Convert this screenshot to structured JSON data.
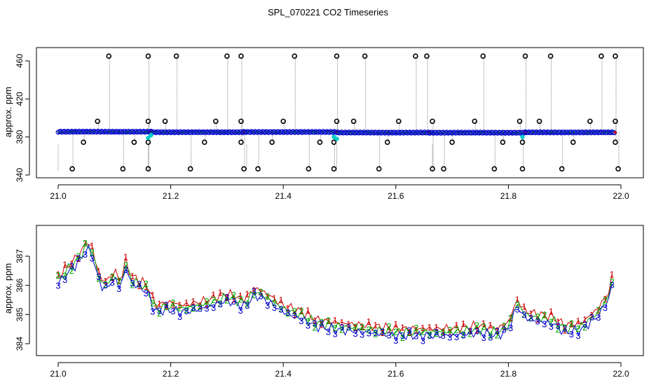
{
  "figure_title": "SPL_070221  CO2 Timeseries",
  "colors": {
    "series1": "#cc0000",
    "series2": "#00aa00",
    "series3": "#0000cc",
    "outlier": "#000000",
    "drop": "#888888",
    "cyan": "#00cccc"
  },
  "chart_data": [
    {
      "type": "scatter",
      "title": "",
      "xlabel": "",
      "ylabel": "approx. ppm",
      "xlim": [
        21.0,
        22.0
      ],
      "ylim": [
        340,
        470
      ],
      "x_ticks": [
        "21.0",
        "21.2",
        "21.4",
        "21.6",
        "21.8",
        "22.0"
      ],
      "y_ticks": [
        "340",
        "380",
        "420",
        "460"
      ],
      "baseline_segments": [
        [
          21.0,
          21.165,
          385.5
        ],
        [
          21.165,
          21.33,
          385.0
        ],
        [
          21.33,
          21.495,
          385.2
        ],
        [
          21.495,
          21.66,
          384.6
        ],
        [
          21.66,
          21.83,
          384.5
        ],
        [
          21.83,
          21.99,
          384.8
        ]
      ],
      "spikes_high": [
        21.09,
        21.16,
        21.21,
        21.3,
        21.325,
        21.42,
        21.495,
        21.545,
        21.635,
        21.655,
        21.755,
        21.83,
        21.875,
        21.965,
        21.99
      ],
      "spikes_mid": [
        21.07,
        21.16,
        21.19,
        21.28,
        21.325,
        21.4,
        21.495,
        21.525,
        21.605,
        21.665,
        21.74,
        21.82,
        21.855,
        21.945,
        21.99
      ],
      "spikes_low": [
        21.045,
        21.135,
        21.16,
        21.26,
        21.325,
        21.38,
        21.465,
        21.49,
        21.585,
        21.7,
        21.79,
        21.825,
        21.915,
        21.99
      ],
      "spikes_bottom": [
        21.025,
        21.115,
        21.16,
        21.235,
        21.33,
        21.355,
        21.445,
        21.49,
        21.57,
        21.665,
        21.685,
        21.775,
        21.825,
        21.895,
        21.995
      ],
      "cyan_points": [
        [
          21.16,
          379
        ],
        [
          21.165,
          382
        ],
        [
          21.49,
          380
        ],
        [
          21.495,
          378
        ],
        [
          21.825,
          380
        ]
      ]
    },
    {
      "type": "line",
      "title": "",
      "xlabel": "",
      "ylabel": "approx. ppm",
      "xlim": [
        21.0,
        22.0
      ],
      "ylim": [
        383.6,
        387.6
      ],
      "x_ticks": [
        "21.0",
        "21.2",
        "21.4",
        "21.6",
        "21.8",
        "22.0"
      ],
      "y_ticks": [
        "384",
        "385",
        "386",
        "387"
      ],
      "series": [
        {
          "name": "1",
          "color": "#cc0000"
        },
        {
          "name": "2",
          "color": "#00aa00"
        },
        {
          "name": "3",
          "color": "#0000cc"
        }
      ],
      "knots_x": [
        21.0,
        21.02,
        21.04,
        21.05,
        21.06,
        21.07,
        21.08,
        21.09,
        21.1,
        21.11,
        21.12,
        21.13,
        21.15,
        21.165,
        21.17,
        21.2,
        21.22,
        21.25,
        21.27,
        21.3,
        21.33,
        21.35,
        21.37,
        21.4,
        21.43,
        21.46,
        21.5,
        21.55,
        21.6,
        21.65,
        21.7,
        21.75,
        21.78,
        21.8,
        21.815,
        21.83,
        21.85,
        21.88,
        21.9,
        21.93,
        21.96,
        21.98,
        21.99
      ],
      "knots_y": [
        386.2,
        386.6,
        387.0,
        387.4,
        387.2,
        386.4,
        386.0,
        386.1,
        386.4,
        386.0,
        386.7,
        386.2,
        386.0,
        385.7,
        385.2,
        385.3,
        385.2,
        385.3,
        385.4,
        385.6,
        385.4,
        385.8,
        385.6,
        385.2,
        385.0,
        384.7,
        384.6,
        384.5,
        384.4,
        384.4,
        384.4,
        384.5,
        384.4,
        384.6,
        385.4,
        385.0,
        384.9,
        384.8,
        384.5,
        384.6,
        385.1,
        385.7,
        386.8
      ]
    }
  ]
}
